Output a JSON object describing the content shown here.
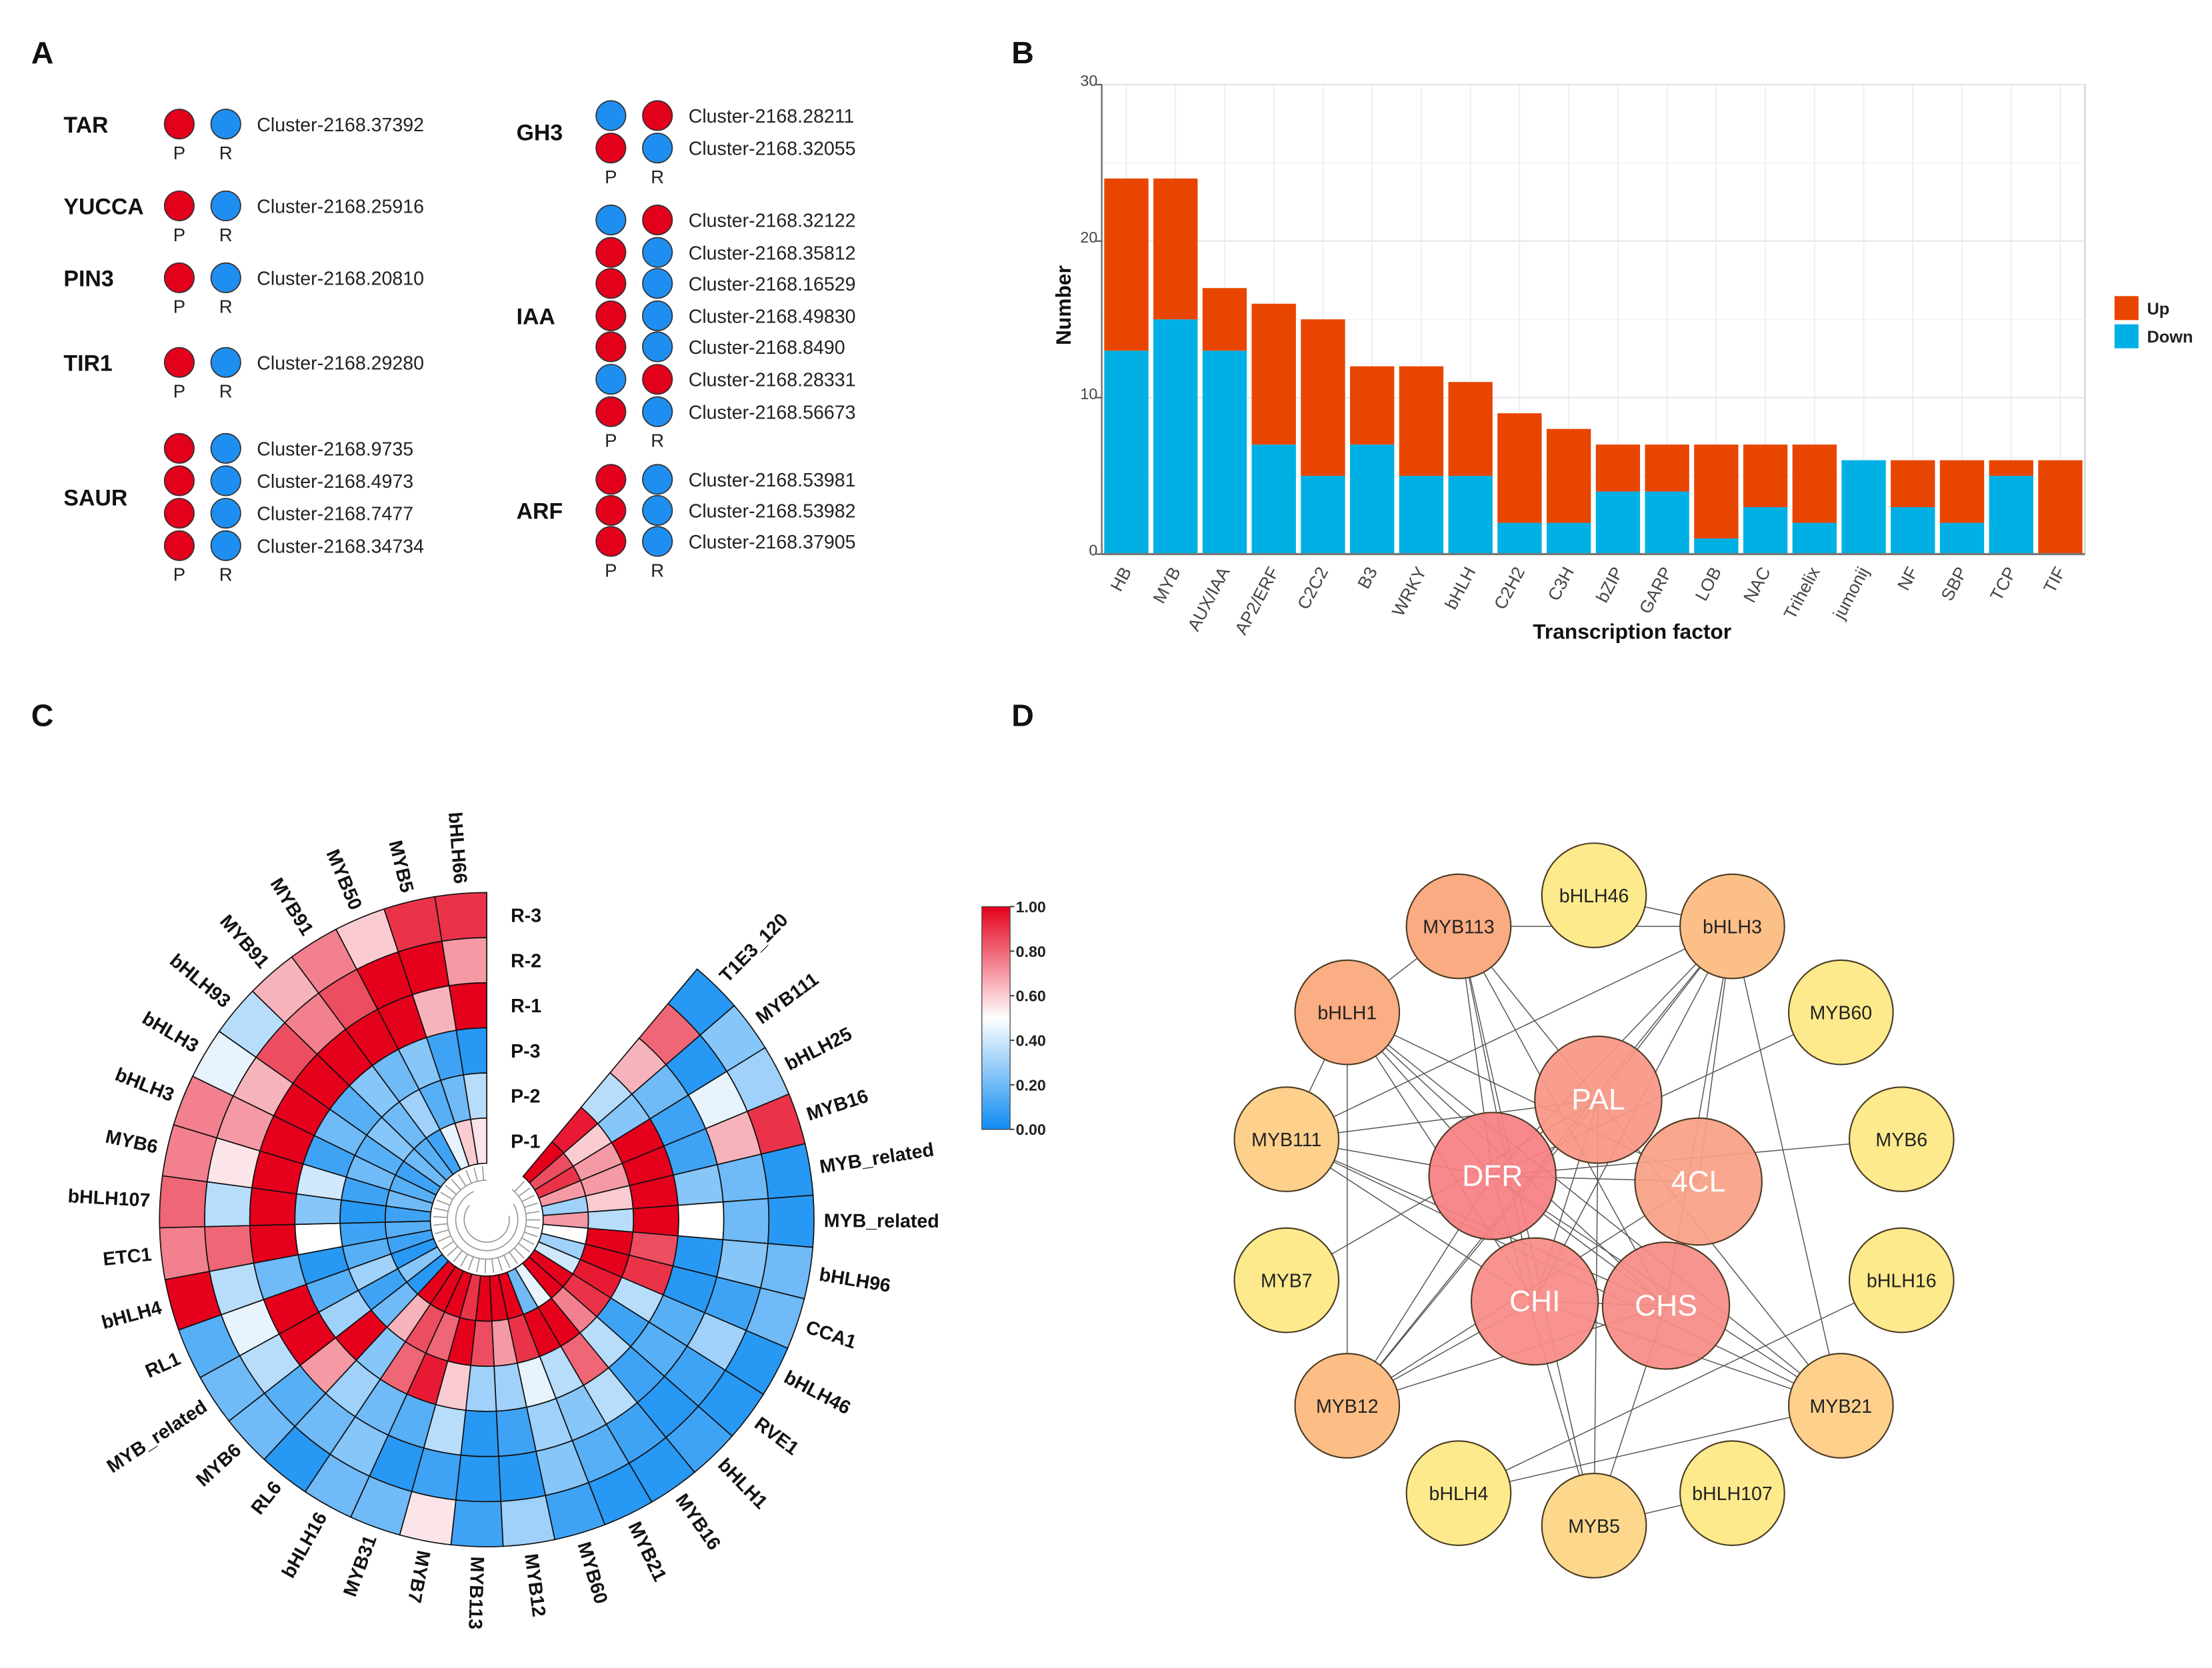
{
  "panel_labels": {
    "a": "A",
    "b": "B",
    "c": "C",
    "d": "D"
  },
  "panel_a": {
    "pr_labels": [
      "P",
      "R"
    ],
    "colors": {
      "up": "#e3001b",
      "down": "#1e8ff0"
    },
    "groups": [
      {
        "name": "TAR",
        "genes": [
          {
            "id": "Cluster-2168.37392",
            "p": "up",
            "r": "down"
          }
        ]
      },
      {
        "name": "YUCCA",
        "genes": [
          {
            "id": "Cluster-2168.25916",
            "p": "up",
            "r": "down"
          }
        ]
      },
      {
        "name": "PIN3",
        "genes": [
          {
            "id": "Cluster-2168.20810",
            "p": "up",
            "r": "down"
          }
        ]
      },
      {
        "name": "TIR1",
        "genes": [
          {
            "id": "Cluster-2168.29280",
            "p": "up",
            "r": "down"
          }
        ]
      },
      {
        "name": "SAUR",
        "genes": [
          {
            "id": "Cluster-2168.9735",
            "p": "up",
            "r": "down"
          },
          {
            "id": "Cluster-2168.4973",
            "p": "up",
            "r": "down"
          },
          {
            "id": "Cluster-2168.7477",
            "p": "up",
            "r": "down"
          },
          {
            "id": "Cluster-2168.34734",
            "p": "up",
            "r": "down"
          }
        ]
      },
      {
        "name": "GH3",
        "genes": [
          {
            "id": "Cluster-2168.28211",
            "p": "down",
            "r": "up"
          },
          {
            "id": "Cluster-2168.32055",
            "p": "up",
            "r": "down"
          }
        ]
      },
      {
        "name": "IAA",
        "genes": [
          {
            "id": "Cluster-2168.32122",
            "p": "down",
            "r": "up"
          },
          {
            "id": "Cluster-2168.35812",
            "p": "up",
            "r": "down"
          },
          {
            "id": "Cluster-2168.16529",
            "p": "up",
            "r": "down"
          },
          {
            "id": "Cluster-2168.49830",
            "p": "up",
            "r": "down"
          },
          {
            "id": "Cluster-2168.8490",
            "p": "up",
            "r": "down"
          },
          {
            "id": "Cluster-2168.28331",
            "p": "down",
            "r": "up"
          },
          {
            "id": "Cluster-2168.56673",
            "p": "up",
            "r": "down"
          }
        ]
      },
      {
        "name": "ARF",
        "genes": [
          {
            "id": "Cluster-2168.53981",
            "p": "up",
            "r": "down"
          },
          {
            "id": "Cluster-2168.53982",
            "p": "up",
            "r": "down"
          },
          {
            "id": "Cluster-2168.37905",
            "p": "up",
            "r": "down"
          }
        ]
      }
    ]
  },
  "chart_data": [
    {
      "type": "bar",
      "stacked": true,
      "categories": [
        "HB",
        "MYB",
        "AUX/IAA",
        "AP2/ERF",
        "C2C2",
        "B3",
        "WRKY",
        "bHLH",
        "C2H2",
        "C3H",
        "bZIP",
        "GARP",
        "LOB",
        "NAC",
        "Trihelix",
        "jumonij",
        "NF",
        "SBP",
        "TCP",
        "TIF"
      ],
      "series": [
        {
          "name": "Down",
          "color": "#00b0e4",
          "values": [
            13,
            15,
            13,
            7,
            5,
            7,
            5,
            5,
            2,
            2,
            4,
            4,
            1,
            3,
            2,
            6,
            3,
            2,
            5,
            0
          ]
        },
        {
          "name": "Up",
          "color": "#e84600",
          "values": [
            11,
            9,
            4,
            9,
            10,
            5,
            7,
            6,
            7,
            6,
            3,
            3,
            6,
            4,
            5,
            0,
            3,
            4,
            1,
            6
          ]
        }
      ],
      "legend_order": [
        "Up",
        "Down"
      ],
      "xlabel": "Transcription factor",
      "ylabel": "Number",
      "ylim": [
        0,
        30
      ],
      "yticks": [
        0,
        10,
        20,
        30
      ],
      "grid": true,
      "legend_position": "right"
    },
    {
      "type": "heatmap",
      "layout": "circular",
      "rows": [
        "R-3",
        "R-2",
        "R-1",
        "P-3",
        "P-2",
        "P-1"
      ],
      "genes": [
        "T1E3_120",
        "MYB111",
        "bHLH25",
        "MYB16",
        "MYB_related",
        "MYB_related",
        "bHLH96",
        "CCA1",
        "bHLH46",
        "RVE1",
        "bHLH1",
        "MYB16",
        "MYB21",
        "MYB60",
        "MYB12",
        "MYB113",
        "MYB7",
        "MYB31",
        "bHLH16",
        "RL6",
        "MYB6",
        "MYB_related",
        "RL1",
        "bHLH4",
        "ETC1",
        "bHLH107",
        "MYB6",
        "bHLH3",
        "bHLH3",
        "bHLH93",
        "MYB91",
        "MYB91",
        "MYB50",
        "MYB5",
        "bHLH66"
      ],
      "values": [
        [
          0.05,
          0.8,
          0.65,
          0.35,
          0.95,
          1.0
        ],
        [
          0.25,
          0.05,
          0.2,
          0.25,
          0.6,
          0.85
        ],
        [
          0.3,
          0.45,
          0.1,
          1.0,
          0.7,
          0.9
        ],
        [
          0.9,
          0.65,
          0.1,
          1.0,
          0.7,
          0.7
        ],
        [
          0.05,
          0.2,
          0.25,
          1.0,
          0.6,
          0.3
        ],
        [
          0.05,
          0.2,
          0.5,
          1.0,
          0.35,
          0.7
        ],
        [
          0.2,
          0.25,
          0.05,
          0.85,
          1.0,
          0.5
        ],
        [
          0.2,
          0.1,
          0.05,
          0.9,
          1.0,
          0.3
        ],
        [
          0.05,
          0.3,
          0.15,
          0.35,
          0.95,
          0.4
        ],
        [
          0.05,
          0.1,
          0.15,
          0.1,
          0.9,
          1.0
        ],
        [
          0.1,
          0.05,
          0.1,
          0.35,
          0.75,
          1.0
        ],
        [
          0.05,
          0.1,
          0.35,
          0.8,
          1.0,
          0.45
        ],
        [
          0.05,
          0.15,
          0.25,
          0.35,
          1.0,
          0.2
        ],
        [
          0.1,
          0.25,
          0.3,
          0.45,
          0.9,
          1.0
        ],
        [
          0.3,
          0.05,
          0.1,
          0.3,
          0.7,
          1.0
        ],
        [
          0.1,
          0.05,
          0.05,
          0.3,
          0.85,
          1.0
        ],
        [
          0.55,
          0.1,
          0.35,
          0.6,
          1.0,
          0.9
        ],
        [
          0.2,
          0.05,
          0.15,
          0.95,
          0.8,
          1.0
        ],
        [
          0.2,
          0.25,
          0.2,
          0.8,
          0.85,
          1.0
        ],
        [
          0.05,
          0.2,
          0.3,
          0.25,
          0.65,
          1.0
        ],
        [
          0.2,
          0.15,
          0.7,
          1.0,
          0.2,
          0.05
        ],
        [
          0.2,
          0.35,
          1.0,
          0.3,
          0.1,
          0.25
        ],
        [
          0.15,
          0.45,
          1.0,
          0.15,
          0.3,
          0.05
        ],
        [
          1.0,
          0.35,
          0.2,
          0.05,
          0.15,
          0.1
        ],
        [
          0.75,
          0.8,
          1.0,
          0.5,
          0.1,
          0.15
        ],
        [
          0.8,
          0.35,
          1.0,
          0.25,
          0.05,
          0.1
        ],
        [
          0.75,
          0.55,
          1.0,
          0.4,
          0.1,
          0.2
        ],
        [
          0.75,
          0.7,
          1.0,
          0.1,
          0.2,
          0.15
        ],
        [
          0.45,
          0.65,
          1.0,
          0.2,
          0.15,
          0.1
        ],
        [
          0.35,
          0.85,
          1.0,
          0.15,
          0.25,
          0.2
        ],
        [
          0.65,
          0.75,
          1.0,
          0.25,
          0.2,
          0.15
        ],
        [
          0.75,
          0.85,
          1.0,
          0.2,
          0.3,
          0.1
        ],
        [
          0.6,
          1.0,
          1.0,
          0.25,
          0.15,
          0.45
        ],
        [
          0.9,
          1.0,
          0.65,
          0.1,
          0.2,
          0.6
        ],
        [
          0.9,
          0.7,
          1.0,
          0.05,
          0.35,
          0.55
        ]
      ],
      "colorbar": {
        "range": [
          0,
          1
        ],
        "ticks": [
          "1.00",
          "0.80",
          "0.60",
          "0.40",
          "0.20",
          "0.00"
        ],
        "colors": [
          "#0f8cf2",
          "#ffffff",
          "#e5001c"
        ]
      }
    }
  ],
  "panel_d": {
    "nodes": [
      {
        "id": "bHLH46",
        "color": "#fcea8c",
        "core": false
      },
      {
        "id": "MYB113",
        "color": "#fbab82",
        "core": false
      },
      {
        "id": "bHLH3",
        "color": "#fdbf88",
        "core": false
      },
      {
        "id": "bHLH1",
        "color": "#fbad83",
        "core": false
      },
      {
        "id": "MYB60",
        "color": "#fcea8c",
        "core": false
      },
      {
        "id": "MYB111",
        "color": "#fdd08c",
        "core": false
      },
      {
        "id": "MYB6",
        "color": "#fcea8c",
        "core": false
      },
      {
        "id": "MYB7",
        "color": "#fcea8c",
        "core": false
      },
      {
        "id": "bHLH16",
        "color": "#fcea8c",
        "core": false
      },
      {
        "id": "MYB12",
        "color": "#fdbe86",
        "core": false
      },
      {
        "id": "MYB21",
        "color": "#fdd08c",
        "core": false
      },
      {
        "id": "bHLH4",
        "color": "#fcea8c",
        "core": false
      },
      {
        "id": "MYB5",
        "color": "#fdd88c",
        "core": false
      },
      {
        "id": "bHLH107",
        "color": "#fcea8c",
        "core": false
      },
      {
        "id": "PAL",
        "color": "#f99685",
        "core": true
      },
      {
        "id": "DFR",
        "color": "#f67f83",
        "core": true
      },
      {
        "id": "4CL",
        "color": "#f9a085",
        "core": true
      },
      {
        "id": "CHI",
        "color": "#f78b86",
        "core": true
      },
      {
        "id": "CHS",
        "color": "#f88c86",
        "core": true
      }
    ],
    "edges": [
      [
        "MYB113",
        "bHLH3"
      ],
      [
        "bHLH46",
        "bHLH3"
      ],
      [
        "MYB113",
        "bHLH1"
      ],
      [
        "bHLH1",
        "MYB111"
      ],
      [
        "bHLH1",
        "MYB12"
      ],
      [
        "MYB111",
        "bHLH3"
      ],
      [
        "MYB111",
        "PAL"
      ],
      [
        "MYB111",
        "DFR"
      ],
      [
        "MYB111",
        "CHS"
      ],
      [
        "MYB111",
        "CHI"
      ],
      [
        "MYB113",
        "DFR"
      ],
      [
        "MYB113",
        "CHI"
      ],
      [
        "MYB113",
        "CHS"
      ],
      [
        "MYB113",
        "MYB5"
      ],
      [
        "MYB113",
        "PAL"
      ],
      [
        "bHLH1",
        "CHS"
      ],
      [
        "bHLH1",
        "CHI"
      ],
      [
        "bHLH1",
        "4CL"
      ],
      [
        "bHLH1",
        "MYB21"
      ],
      [
        "bHLH1",
        "DFR"
      ],
      [
        "bHLH3",
        "DFR"
      ],
      [
        "bHLH3",
        "CHI"
      ],
      [
        "bHLH3",
        "MYB12"
      ],
      [
        "bHLH3",
        "MYB21"
      ],
      [
        "bHLH3",
        "4CL"
      ],
      [
        "bHLH3",
        "CHS"
      ],
      [
        "bHLH3",
        "PAL"
      ],
      [
        "MYB60",
        "DFR"
      ],
      [
        "MYB6",
        "DFR"
      ],
      [
        "MYB7",
        "PAL"
      ],
      [
        "MYB12",
        "PAL"
      ],
      [
        "MYB12",
        "4CL"
      ],
      [
        "MYB12",
        "CHS"
      ],
      [
        "MYB12",
        "DFR"
      ],
      [
        "MYB12",
        "CHI"
      ],
      [
        "MYB21",
        "DFR"
      ],
      [
        "MYB21",
        "CHI"
      ],
      [
        "MYB21",
        "MYB111"
      ],
      [
        "MYB21",
        "bHLH4"
      ],
      [
        "MYB21",
        "PAL"
      ],
      [
        "bHLH16",
        "bHLH4"
      ],
      [
        "MYB5",
        "CHS"
      ],
      [
        "MYB5",
        "DFR"
      ],
      [
        "MYB5",
        "bHLH107"
      ],
      [
        "MYB5",
        "PAL"
      ],
      [
        "DFR",
        "4CL"
      ],
      [
        "PAL",
        "CHI"
      ],
      [
        "DFR",
        "CHS"
      ],
      [
        "CHI",
        "CHS"
      ]
    ]
  }
}
